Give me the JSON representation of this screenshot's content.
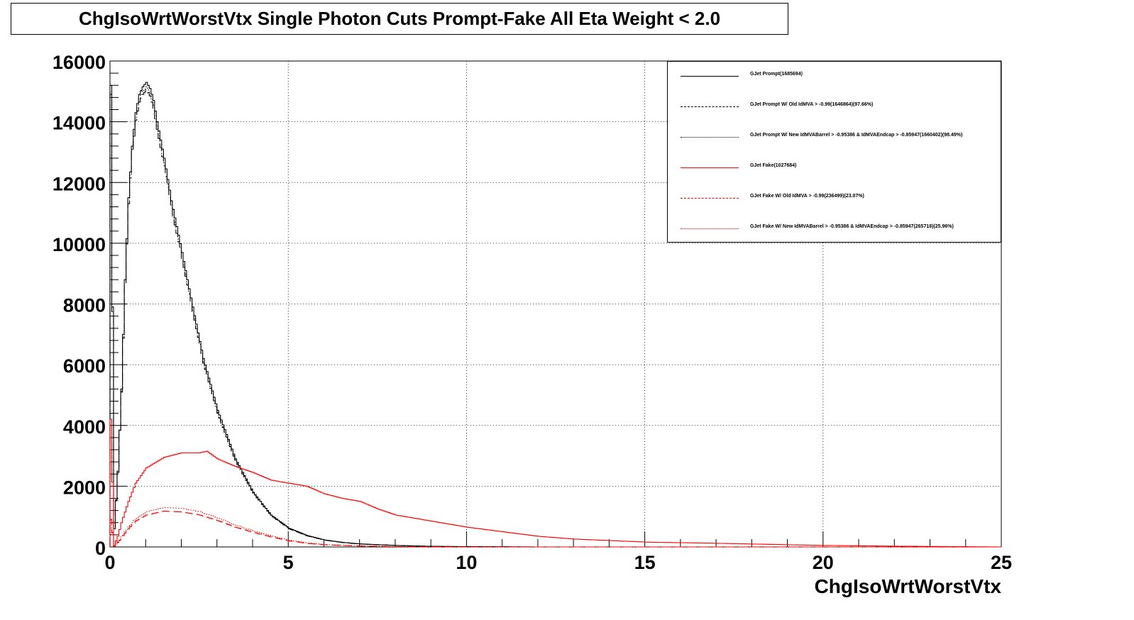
{
  "title": "ChgIsoWrtWorstVtx Single Photon Cuts Prompt-Fake All Eta Weight < 2.0",
  "chart_data": {
    "type": "line",
    "title": "ChgIsoWrtWorstVtx Single Photon Cuts Prompt-Fake All Eta Weight < 2.0",
    "xlabel": "ChgIsoWrtWorstVtx",
    "ylabel": "",
    "xlim": [
      0,
      25
    ],
    "ylim": [
      0,
      16000
    ],
    "x_ticks": [
      "0",
      "5",
      "10",
      "15",
      "20",
      "25"
    ],
    "y_ticks": [
      "0",
      "2000",
      "4000",
      "6000",
      "8000",
      "10000",
      "12000",
      "14000",
      "16000"
    ],
    "grid": true,
    "legend_position": "top-right",
    "series": [
      {
        "name": "GJet Prompt(1685694)",
        "color": "#000000",
        "dash": "solid",
        "x": [
          0.0,
          0.1,
          0.2,
          0.3,
          0.4,
          0.5,
          0.6,
          0.7,
          0.8,
          0.9,
          1.0,
          1.1,
          1.2,
          1.3,
          1.5,
          1.7,
          2.0,
          2.3,
          2.6,
          3.0,
          3.5,
          4.0,
          4.5,
          5.0,
          5.5,
          6.0,
          6.5,
          7.0,
          8.0,
          9.0,
          10.0,
          12.0
        ],
        "y": [
          15200,
          600,
          2500,
          5200,
          8800,
          11500,
          13200,
          14300,
          14900,
          15150,
          15300,
          15100,
          14700,
          14000,
          12800,
          11400,
          9700,
          7900,
          6200,
          4500,
          2900,
          1800,
          1050,
          620,
          380,
          230,
          150,
          100,
          50,
          20,
          10,
          0
        ]
      },
      {
        "name": "GJet Prompt W/ Old IdMVA > -0.99(1646864)(97.66%)",
        "color": "#000000",
        "dash": "long-dash",
        "x": [
          0.0,
          0.1,
          0.2,
          0.3,
          0.4,
          0.5,
          0.6,
          0.7,
          0.8,
          0.9,
          1.0,
          1.1,
          1.2,
          1.3,
          1.5,
          1.7,
          2.0,
          2.3,
          2.6,
          3.0,
          3.5,
          4.0,
          4.5,
          5.0,
          5.5,
          6.0,
          6.5,
          7.0,
          8.0,
          9.0,
          10.0,
          12.0
        ],
        "y": [
          14900,
          590,
          2450,
          5100,
          8650,
          11300,
          13000,
          14050,
          14650,
          14900,
          15050,
          14850,
          14450,
          13750,
          12550,
          11150,
          9500,
          7750,
          6050,
          4400,
          2830,
          1760,
          1030,
          600,
          370,
          225,
          145,
          95,
          48,
          19,
          9,
          0
        ]
      },
      {
        "name": "GJet Prompt W/ New IdMVABarrel > -0.95386 & IdMVAEndcap > -0.85947(1660402)(98.49%)",
        "color": "#000000",
        "dash": "dotted",
        "x": [
          0.0,
          0.1,
          0.2,
          0.3,
          0.4,
          0.5,
          0.6,
          0.7,
          0.8,
          0.9,
          1.0,
          1.1,
          1.2,
          1.3,
          1.5,
          1.7,
          2.0,
          2.3,
          2.6,
          3.0,
          3.5,
          4.0,
          4.5,
          5.0,
          5.5,
          6.0,
          6.5,
          7.0,
          8.0,
          9.0,
          10.0,
          12.0
        ],
        "y": [
          15000,
          595,
          2470,
          5130,
          8700,
          11380,
          13080,
          14150,
          14750,
          15000,
          15150,
          14950,
          14550,
          13850,
          12650,
          11250,
          9580,
          7800,
          6100,
          4430,
          2860,
          1780,
          1040,
          610,
          375,
          228,
          148,
          98,
          49,
          19,
          9,
          0
        ]
      },
      {
        "name": "GJet Fake(1027684)",
        "color": "#ff0000",
        "dash": "solid",
        "x": [
          0.0,
          0.1,
          0.2,
          0.3,
          0.5,
          0.7,
          1.0,
          1.5,
          2.0,
          2.5,
          2.7,
          3.0,
          3.5,
          4.0,
          4.5,
          5.0,
          5.5,
          6.0,
          6.5,
          7.0,
          7.5,
          8.0,
          9.0,
          10.0,
          11.0,
          12.0,
          13.0,
          15.0,
          17.0,
          20.0,
          22.0,
          25.0
        ],
        "y": [
          4200,
          50,
          350,
          800,
          1500,
          2100,
          2600,
          2950,
          3100,
          3100,
          3150,
          2900,
          2650,
          2450,
          2200,
          2100,
          2000,
          1750,
          1600,
          1500,
          1250,
          1050,
          850,
          650,
          500,
          350,
          260,
          160,
          120,
          50,
          25,
          0
        ]
      },
      {
        "name": "GJet Fake W/ Old IdMVA > -0.99(236499)(23.07%)",
        "color": "#ff0000",
        "dash": "long-dash",
        "x": [
          0.0,
          0.1,
          0.2,
          0.3,
          0.5,
          0.7,
          1.0,
          1.5,
          2.0,
          2.5,
          3.0,
          3.5,
          4.0,
          4.5,
          5.0,
          5.5,
          6.0,
          7.0,
          8.0,
          10.0,
          12.0
        ],
        "y": [
          900,
          20,
          150,
          300,
          600,
          850,
          1050,
          1180,
          1150,
          1050,
          870,
          650,
          480,
          330,
          200,
          120,
          70,
          30,
          10,
          0,
          0
        ]
      },
      {
        "name": "GJet Fake W/ New IdMVABarrel > -0.95386 & IdMVAEndcap > -0.85947(265718)(25.96%)",
        "color": "#ff0000",
        "dash": "dotted",
        "x": [
          0.0,
          0.1,
          0.2,
          0.3,
          0.5,
          0.7,
          1.0,
          1.5,
          2.0,
          2.5,
          3.0,
          3.5,
          4.0,
          4.5,
          5.0,
          5.5,
          6.0,
          7.0,
          8.0,
          10.0,
          12.0
        ],
        "y": [
          950,
          25,
          170,
          330,
          660,
          940,
          1160,
          1300,
          1270,
          1160,
          960,
          720,
          530,
          370,
          225,
          135,
          80,
          35,
          12,
          0,
          0
        ]
      }
    ]
  }
}
